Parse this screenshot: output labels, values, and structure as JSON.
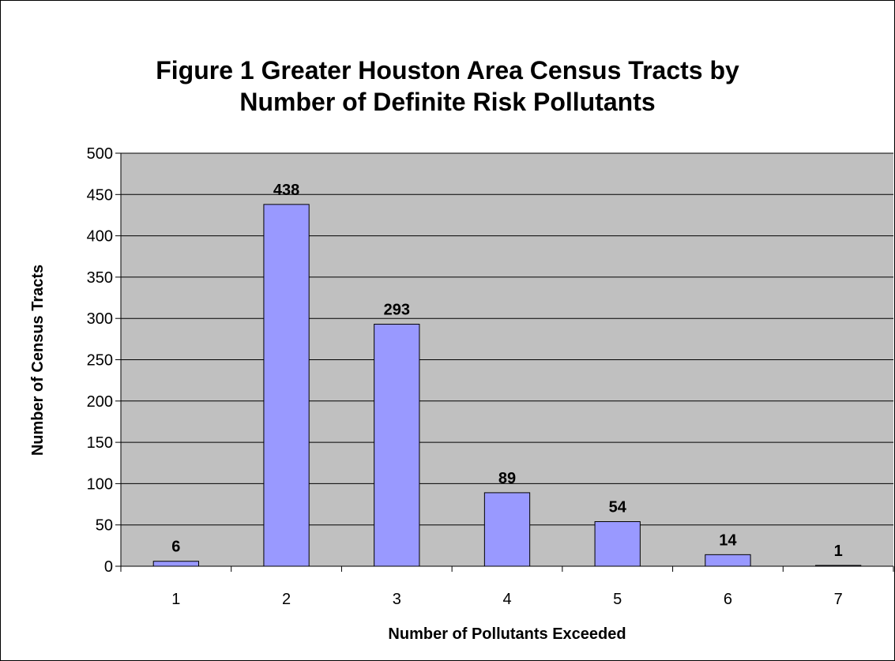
{
  "chart_data": {
    "type": "bar",
    "title_lines": [
      "Figure 1 Greater Houston Area Census Tracts by",
      "Number of Definite Risk Pollutants"
    ],
    "xlabel": "Number of Pollutants Exceeded",
    "ylabel": "Number of Census Tracts",
    "categories": [
      "1",
      "2",
      "3",
      "4",
      "5",
      "6",
      "7"
    ],
    "values": [
      6,
      438,
      293,
      89,
      54,
      14,
      1
    ],
    "data_labels": [
      "6",
      "438",
      "293",
      "89",
      "54",
      "14",
      "1"
    ],
    "ylim": [
      0,
      500
    ],
    "yticks": [
      "0",
      "50",
      "100",
      "150",
      "200",
      "250",
      "300",
      "350",
      "400",
      "450",
      "500"
    ],
    "grid": true,
    "legend": "none"
  },
  "colors": {
    "plot_background": "#c0c0c0",
    "bar_fill": "#9999ff",
    "bar_stroke": "#000000",
    "gridline": "#000000"
  }
}
